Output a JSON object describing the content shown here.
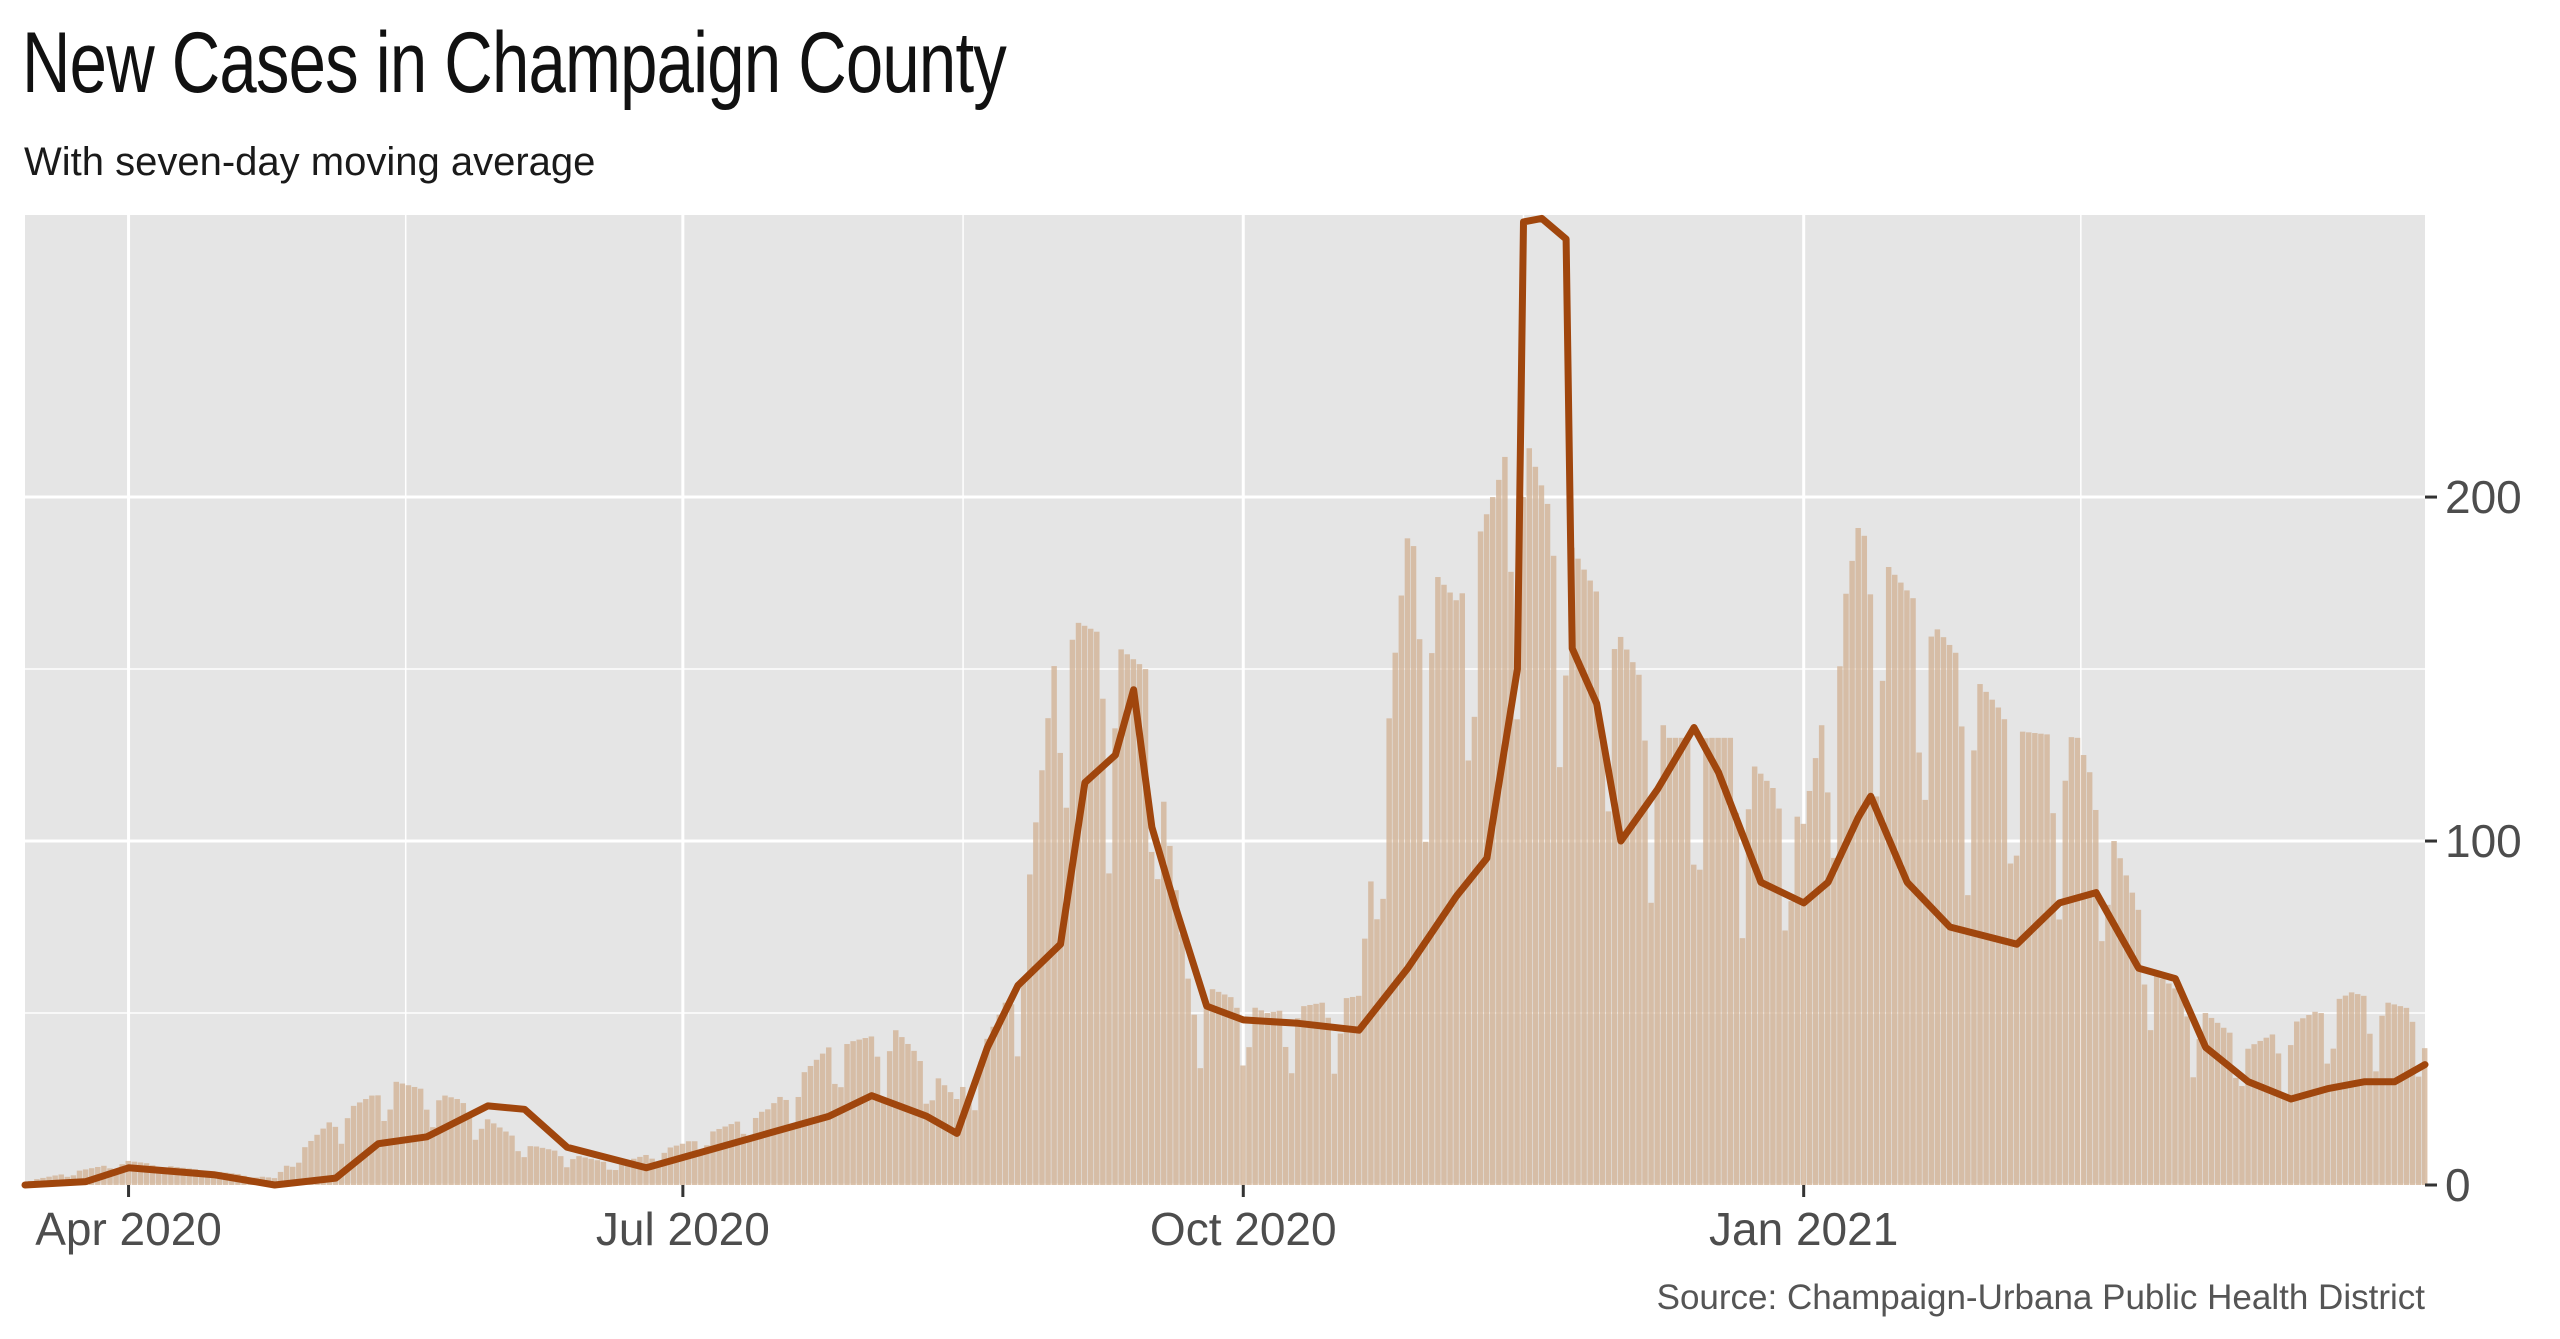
{
  "title": "New Cases in Champaign County",
  "subtitle": "With seven-day moving average",
  "caption": "Source: Champaign-Urbana Public Health District",
  "chart_data": {
    "type": "bar",
    "title": "New Cases in Champaign County",
    "subtitle": "With seven-day moving average",
    "xlabel": "",
    "ylabel": "",
    "x_range": [
      "2020-03-15",
      "2021-04-13"
    ],
    "ylim": [
      0,
      282
    ],
    "y_axis_position": "right",
    "grid": true,
    "x_ticks": [
      {
        "date": "2020-04-01",
        "label": "Apr 2020"
      },
      {
        "date": "2020-07-01",
        "label": "Jul 2020"
      },
      {
        "date": "2020-10-01",
        "label": "Oct 2020"
      },
      {
        "date": "2021-01-01",
        "label": "Jan 2021"
      }
    ],
    "y_ticks": [
      0,
      100,
      200
    ],
    "colors": {
      "bars": "#d2b396",
      "line": "#a0460d",
      "panel": "#e5e5e5",
      "grid": "#ffffff"
    },
    "series": [
      {
        "type": "bar",
        "values": [
          {
            "date": "2020-03-15",
            "value": 1
          },
          {
            "date": "2020-04-01",
            "value": 7
          },
          {
            "date": "2020-04-10",
            "value": 5
          },
          {
            "date": "2020-04-25",
            "value": 2
          },
          {
            "date": "2020-05-05",
            "value": 20
          },
          {
            "date": "2020-05-15",
            "value": 30
          },
          {
            "date": "2020-05-25",
            "value": 25
          },
          {
            "date": "2020-06-05",
            "value": 12
          },
          {
            "date": "2020-06-20",
            "value": 6
          },
          {
            "date": "2020-07-01",
            "value": 12
          },
          {
            "date": "2020-07-15",
            "value": 22
          },
          {
            "date": "2020-07-25",
            "value": 40
          },
          {
            "date": "2020-08-05",
            "value": 45
          },
          {
            "date": "2020-08-15",
            "value": 25
          },
          {
            "date": "2020-08-25",
            "value": 60
          },
          {
            "date": "2020-09-01",
            "value": 166
          },
          {
            "date": "2020-09-08",
            "value": 160
          },
          {
            "date": "2020-09-15",
            "value": 150
          },
          {
            "date": "2020-09-22",
            "value": 60
          },
          {
            "date": "2020-10-05",
            "value": 50
          },
          {
            "date": "2020-10-20",
            "value": 55
          },
          {
            "date": "2020-10-28",
            "value": 188
          },
          {
            "date": "2020-11-05",
            "value": 170
          },
          {
            "date": "2020-11-12",
            "value": 205
          },
          {
            "date": "2020-11-15",
            "value": 225
          },
          {
            "date": "2020-11-20",
            "value": 198
          },
          {
            "date": "2020-12-01",
            "value": 163
          },
          {
            "date": "2020-12-10",
            "value": 130
          },
          {
            "date": "2020-12-20",
            "value": 130
          },
          {
            "date": "2021-01-01",
            "value": 105
          },
          {
            "date": "2021-01-10",
            "value": 191
          },
          {
            "date": "2021-01-25",
            "value": 157
          },
          {
            "date": "2021-02-05",
            "value": 132
          },
          {
            "date": "2021-02-15",
            "value": 130
          },
          {
            "date": "2021-03-01",
            "value": 60
          },
          {
            "date": "2021-03-15",
            "value": 40
          },
          {
            "date": "2021-04-01",
            "value": 56
          },
          {
            "date": "2021-04-13",
            "value": 50
          }
        ]
      },
      {
        "type": "line",
        "name": "",
        "values": [
          {
            "date": "2020-03-15",
            "value": 0
          },
          {
            "date": "2020-03-25",
            "value": 1
          },
          {
            "date": "2020-04-01",
            "value": 5
          },
          {
            "date": "2020-04-15",
            "value": 3
          },
          {
            "date": "2020-04-25",
            "value": 0
          },
          {
            "date": "2020-05-05",
            "value": 2
          },
          {
            "date": "2020-05-12",
            "value": 12
          },
          {
            "date": "2020-05-20",
            "value": 14
          },
          {
            "date": "2020-05-30",
            "value": 23
          },
          {
            "date": "2020-06-05",
            "value": 22
          },
          {
            "date": "2020-06-12",
            "value": 11
          },
          {
            "date": "2020-06-25",
            "value": 5
          },
          {
            "date": "2020-07-05",
            "value": 10
          },
          {
            "date": "2020-07-15",
            "value": 15
          },
          {
            "date": "2020-07-25",
            "value": 20
          },
          {
            "date": "2020-08-01",
            "value": 26
          },
          {
            "date": "2020-08-10",
            "value": 20
          },
          {
            "date": "2020-08-15",
            "value": 15
          },
          {
            "date": "2020-08-20",
            "value": 40
          },
          {
            "date": "2020-08-25",
            "value": 58
          },
          {
            "date": "2020-09-01",
            "value": 70
          },
          {
            "date": "2020-09-05",
            "value": 117
          },
          {
            "date": "2020-09-10",
            "value": 125
          },
          {
            "date": "2020-09-13",
            "value": 144
          },
          {
            "date": "2020-09-16",
            "value": 104
          },
          {
            "date": "2020-09-20",
            "value": 80
          },
          {
            "date": "2020-09-25",
            "value": 52
          },
          {
            "date": "2020-10-01",
            "value": 48
          },
          {
            "date": "2020-10-10",
            "value": 47
          },
          {
            "date": "2020-10-20",
            "value": 45
          },
          {
            "date": "2020-10-28",
            "value": 63
          },
          {
            "date": "2020-11-05",
            "value": 84
          },
          {
            "date": "2020-11-10",
            "value": 95
          },
          {
            "date": "2020-11-15",
            "value": 150
          },
          {
            "date": "2020-11-16",
            "value": 280
          },
          {
            "date": "2020-11-19",
            "value": 281
          },
          {
            "date": "2020-11-23",
            "value": 275
          },
          {
            "date": "2020-11-24",
            "value": 156
          },
          {
            "date": "2020-11-28",
            "value": 140
          },
          {
            "date": "2020-12-02",
            "value": 100
          },
          {
            "date": "2020-12-08",
            "value": 115
          },
          {
            "date": "2020-12-14",
            "value": 133
          },
          {
            "date": "2020-12-18",
            "value": 120
          },
          {
            "date": "2020-12-25",
            "value": 88
          },
          {
            "date": "2021-01-01",
            "value": 82
          },
          {
            "date": "2021-01-05",
            "value": 88
          },
          {
            "date": "2021-01-10",
            "value": 107
          },
          {
            "date": "2021-01-12",
            "value": 113
          },
          {
            "date": "2021-01-18",
            "value": 88
          },
          {
            "date": "2021-01-25",
            "value": 75
          },
          {
            "date": "2021-02-05",
            "value": 70
          },
          {
            "date": "2021-02-12",
            "value": 82
          },
          {
            "date": "2021-02-18",
            "value": 85
          },
          {
            "date": "2021-02-25",
            "value": 63
          },
          {
            "date": "2021-03-03",
            "value": 60
          },
          {
            "date": "2021-03-08",
            "value": 40
          },
          {
            "date": "2021-03-15",
            "value": 30
          },
          {
            "date": "2021-03-22",
            "value": 25
          },
          {
            "date": "2021-03-28",
            "value": 28
          },
          {
            "date": "2021-04-03",
            "value": 30
          },
          {
            "date": "2021-04-08",
            "value": 30
          },
          {
            "date": "2021-04-13",
            "value": 35
          }
        ]
      }
    ]
  }
}
